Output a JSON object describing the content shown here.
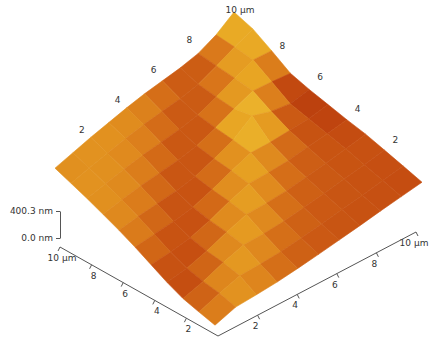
{
  "chart_data": {
    "type": "surface",
    "x": [
      0,
      1,
      2,
      3,
      4,
      5,
      6,
      7,
      8,
      9,
      10
    ],
    "y": [
      0,
      1,
      2,
      3,
      4,
      5,
      6,
      7,
      8,
      9,
      10
    ],
    "xlim": [
      0,
      10
    ],
    "ylim": [
      0,
      10
    ],
    "xticks": [
      2,
      4,
      6,
      8,
      {
        "value": 10,
        "label": "10 μm"
      }
    ],
    "yticks": [
      2,
      4,
      6,
      8,
      {
        "value": 10,
        "label": "10 μm"
      }
    ],
    "zlim": [
      0,
      400.3
    ],
    "zticks": [
      {
        "value": 0,
        "label": "0.0 nm"
      },
      {
        "value": 400.3,
        "label": "400.3 nm"
      }
    ],
    "z": [
      [
        220,
        270,
        235,
        205,
        190,
        180,
        175,
        170,
        170,
        165,
        160
      ],
      [
        185,
        245,
        285,
        240,
        205,
        190,
        180,
        175,
        170,
        168,
        165
      ],
      [
        155,
        190,
        250,
        292,
        240,
        205,
        190,
        180,
        175,
        170,
        168
      ],
      [
        165,
        155,
        192,
        252,
        295,
        242,
        205,
        188,
        178,
        172,
        170
      ],
      [
        198,
        165,
        158,
        195,
        255,
        300,
        245,
        200,
        185,
        160,
        150
      ],
      [
        228,
        200,
        168,
        160,
        200,
        258,
        305,
        240,
        195,
        150,
        140
      ],
      [
        248,
        230,
        200,
        170,
        162,
        205,
        262,
        400.3,
        245,
        140,
        130
      ],
      [
        255,
        250,
        232,
        202,
        172,
        165,
        210,
        268,
        315,
        230,
        135
      ],
      [
        260,
        256,
        250,
        235,
        205,
        175,
        168,
        215,
        272,
        320,
        235
      ],
      [
        255,
        260,
        255,
        252,
        238,
        208,
        178,
        170,
        220,
        278,
        325
      ],
      [
        250,
        256,
        262,
        258,
        254,
        240,
        210,
        180,
        172,
        225,
        340
      ]
    ]
  }
}
